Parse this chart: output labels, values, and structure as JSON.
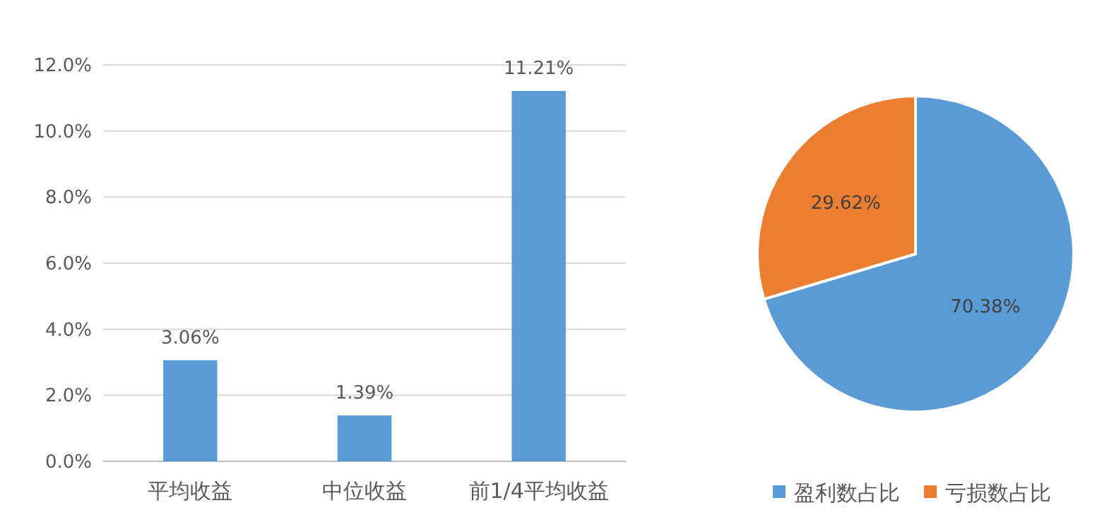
{
  "chart_data": [
    {
      "type": "bar",
      "categories": [
        "平均收益",
        "中位收益",
        "前1/4平均收益"
      ],
      "values": [
        3.06,
        1.39,
        11.21
      ],
      "color": "#5b9bd5",
      "ylim": [
        0,
        12
      ],
      "yticks": [
        {
          "value": 0,
          "label": "0.0%"
        },
        {
          "value": 2,
          "label": "2.0%"
        },
        {
          "value": 4,
          "label": "4.0%"
        },
        {
          "value": 6,
          "label": "6.0%"
        },
        {
          "value": 8,
          "label": "8.0%"
        },
        {
          "value": 10,
          "label": "10.0%"
        },
        {
          "value": 12,
          "label": "12.0%"
        }
      ],
      "grid": "y",
      "value_labels": [
        "3.06%",
        "1.39%",
        "11.21%"
      ]
    },
    {
      "type": "pie",
      "categories": [
        "盈利数占比",
        "亏损数占比"
      ],
      "values": [
        70.38,
        29.62
      ],
      "colors": [
        "#5b9bd5",
        "#ed7d31"
      ],
      "value_labels": [
        "70.38%",
        "29.62%"
      ],
      "legend": "bottom"
    }
  ]
}
